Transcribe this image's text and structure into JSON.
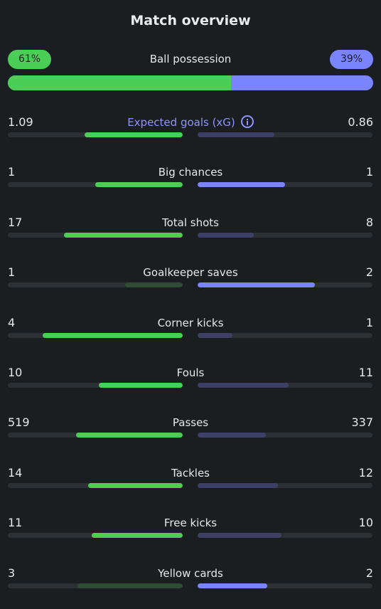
{
  "header": {
    "title": "Match overview"
  },
  "colors": {
    "home_win": "#4bce56",
    "home_dim": "#2f4b34",
    "away_win": "#7b84ff",
    "away_dim": "#3c4064",
    "track": "#2b3034"
  },
  "possession": {
    "label": "Ball possession",
    "home": "61%",
    "away": "39%",
    "home_share": 61,
    "away_share": 39
  },
  "stats": [
    {
      "label": "Expected goals (xG)",
      "home": "1.09",
      "away": "0.86",
      "home_fill": 0.56,
      "away_fill": 0.44,
      "winner": "home",
      "accent": true,
      "icon": "info-icon"
    },
    {
      "label": "Big chances",
      "home": "1",
      "away": "1",
      "home_fill": 0.5,
      "away_fill": 0.5,
      "winner": "both",
      "accent": false
    },
    {
      "label": "Total shots",
      "home": "17",
      "away": "8",
      "home_fill": 0.68,
      "away_fill": 0.32,
      "winner": "home",
      "accent": false
    },
    {
      "label": "Goalkeeper saves",
      "home": "1",
      "away": "2",
      "home_fill": 0.33,
      "away_fill": 0.67,
      "winner": "away",
      "accent": false
    },
    {
      "label": "Corner kicks",
      "home": "4",
      "away": "1",
      "home_fill": 0.8,
      "away_fill": 0.2,
      "winner": "home",
      "accent": false
    },
    {
      "label": "Fouls",
      "home": "10",
      "away": "11",
      "home_fill": 0.48,
      "away_fill": 0.52,
      "winner": "home",
      "accent": false
    },
    {
      "label": "Passes",
      "home": "519",
      "away": "337",
      "home_fill": 0.61,
      "away_fill": 0.39,
      "winner": "home",
      "accent": false
    },
    {
      "label": "Tackles",
      "home": "14",
      "away": "12",
      "home_fill": 0.54,
      "away_fill": 0.46,
      "winner": "home",
      "accent": false
    },
    {
      "label": "Free kicks",
      "home": "11",
      "away": "10",
      "home_fill": 0.52,
      "away_fill": 0.48,
      "winner": "home",
      "accent": false
    },
    {
      "label": "Yellow cards",
      "home": "3",
      "away": "2",
      "home_fill": 0.6,
      "away_fill": 0.4,
      "winner": "away",
      "accent": false
    }
  ]
}
